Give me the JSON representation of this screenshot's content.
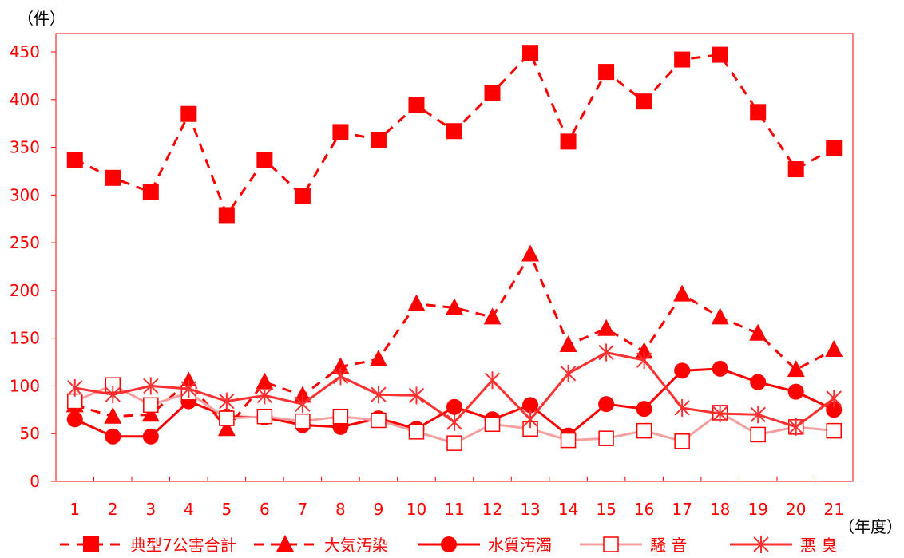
{
  "chart_data": {
    "type": "line",
    "title": "",
    "y_unit_label": "（件）",
    "x_unit_label": "（年度）",
    "categories": [
      "1",
      "2",
      "3",
      "4",
      "5",
      "6",
      "7",
      "8",
      "9",
      "10",
      "11",
      "12",
      "13",
      "14",
      "15",
      "16",
      "17",
      "18",
      "19",
      "20",
      "21"
    ],
    "ylim": [
      0,
      450
    ],
    "yticks": [
      0,
      50,
      100,
      150,
      200,
      250,
      300,
      350,
      400,
      450
    ],
    "grid": false,
    "legend_position": "bottom",
    "series": [
      {
        "name": "典型7公害合計",
        "color": "#ff0000",
        "style": "dashed",
        "marker": "square-filled",
        "values": [
          337,
          318,
          303,
          385,
          279,
          337,
          299,
          366,
          358,
          394,
          367,
          407,
          449,
          356,
          429,
          398,
          442,
          447,
          387,
          327,
          349
        ]
      },
      {
        "name": "大気汚染",
        "color": "#ff0000",
        "style": "dashed",
        "marker": "triangle-filled",
        "values": [
          80,
          68,
          70,
          105,
          55,
          104,
          90,
          120,
          128,
          186,
          182,
          172,
          238,
          143,
          160,
          136,
          196,
          172,
          155,
          117,
          138
        ]
      },
      {
        "name": "水質汚濁",
        "color": "#ff0000",
        "style": "solid",
        "marker": "circle-filled",
        "values": [
          65,
          47,
          47,
          84,
          68,
          67,
          59,
          57,
          66,
          55,
          78,
          65,
          80,
          48,
          81,
          76,
          116,
          118,
          104,
          94,
          75
        ]
      },
      {
        "name": "騒 音",
        "color": "#f5a0a0",
        "style": "solid",
        "marker": "square-open",
        "values": [
          84,
          101,
          80,
          93,
          66,
          68,
          63,
          68,
          64,
          52,
          40,
          60,
          55,
          43,
          45,
          53,
          42,
          72,
          49,
          57,
          53
        ]
      },
      {
        "name": "悪 臭",
        "color": "#ff3030",
        "style": "solid",
        "marker": "star",
        "values": [
          98,
          91,
          100,
          97,
          84,
          90,
          81,
          110,
          91,
          90,
          62,
          106,
          65,
          113,
          135,
          127,
          77,
          71,
          70,
          57,
          87
        ]
      }
    ]
  }
}
